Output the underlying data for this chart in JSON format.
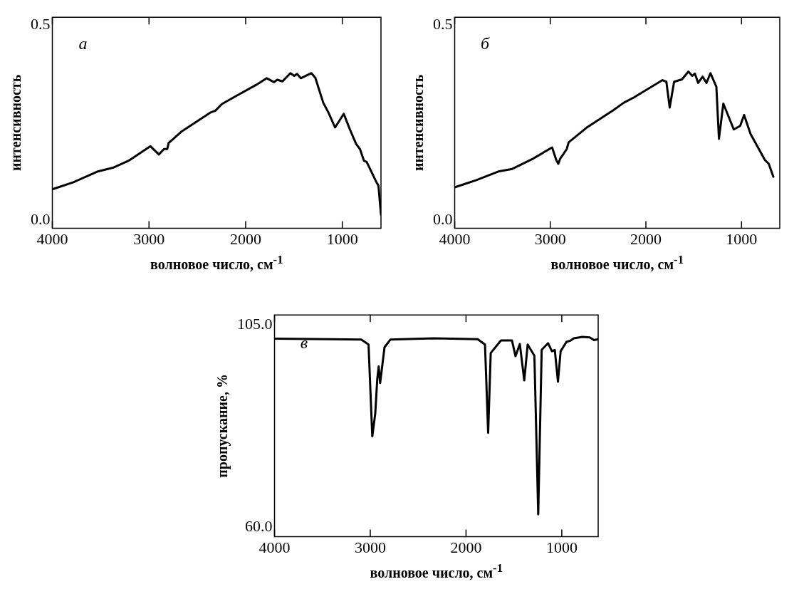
{
  "chart_data": [
    {
      "type": "line",
      "xlabel": "волновое число, см$^{-1}$",
      "ylabel": "интенсивность",
      "annotations": [
        "а"
      ],
      "xlim": [
        4000,
        600
      ],
      "ylim": [
        -0.02,
        0.52
      ],
      "xticks": [
        4000,
        3000,
        2000,
        1000
      ],
      "yticks": [
        {
          "value": 0,
          "label": "0.0"
        },
        {
          "value": 0.5,
          "label": "0.5"
        }
      ],
      "series": [
        {
          "color": "#000000",
          "x": [
            4000,
            3782,
            3537,
            3374,
            3211,
            2985,
            2898,
            2844,
            2811,
            2797,
            2667,
            2367,
            2313,
            2245,
            2095,
            1891,
            1782,
            1706,
            1673,
            1619,
            1537,
            1497,
            1469,
            1429,
            1320,
            1279,
            1197,
            1143,
            1075,
            985,
            925,
            857,
            816,
            776,
            748,
            653,
            626,
            600
          ],
          "values": [
            0.08,
            0.098,
            0.125,
            0.135,
            0.153,
            0.19,
            0.169,
            0.183,
            0.183,
            0.198,
            0.227,
            0.276,
            0.281,
            0.298,
            0.319,
            0.347,
            0.364,
            0.354,
            0.36,
            0.356,
            0.377,
            0.37,
            0.375,
            0.364,
            0.377,
            0.365,
            0.301,
            0.276,
            0.238,
            0.273,
            0.235,
            0.196,
            0.182,
            0.153,
            0.15,
            0.101,
            0.089,
            0.015
          ]
        }
      ]
    },
    {
      "type": "line",
      "xlabel": "волновое число, см$^{-1}$",
      "ylabel": "интенсивность",
      "annotations": [
        "б"
      ],
      "xlim": [
        4000,
        600
      ],
      "ylim": [
        -0.02,
        0.52
      ],
      "xticks": [
        4000,
        3000,
        2000,
        1000
      ],
      "yticks": [
        {
          "value": 0,
          "label": "0.0"
        },
        {
          "value": 0.5,
          "label": "0.5"
        }
      ],
      "series": [
        {
          "color": "#000000",
          "x": [
            4000,
            3778,
            3534,
            3398,
            3182,
            2981,
            2938,
            2916,
            2897,
            2829,
            2808,
            2612,
            2341,
            2233,
            2125,
            1827,
            1786,
            1751,
            1705,
            1623,
            1556,
            1515,
            1488,
            1453,
            1407,
            1366,
            1325,
            1263,
            1236,
            1190,
            1081,
            1014,
            973,
            905,
            837,
            756,
            715,
            667
          ],
          "values": [
            0.085,
            0.103,
            0.126,
            0.132,
            0.158,
            0.187,
            0.155,
            0.145,
            0.158,
            0.182,
            0.2,
            0.239,
            0.282,
            0.301,
            0.315,
            0.359,
            0.355,
            0.289,
            0.355,
            0.361,
            0.381,
            0.37,
            0.376,
            0.352,
            0.368,
            0.352,
            0.377,
            0.342,
            0.209,
            0.299,
            0.233,
            0.242,
            0.27,
            0.221,
            0.191,
            0.155,
            0.145,
            0.112
          ]
        }
      ]
    },
    {
      "type": "line",
      "xlabel": "волновое число, см$^{-1}$",
      "ylabel": "пропускание, %",
      "annotations": [
        "в"
      ],
      "xlim": [
        4000,
        620
      ],
      "ylim": [
        57.8,
        107.3
      ],
      "xticks": [
        4000,
        3000,
        2000,
        1000
      ],
      "yticks": [
        {
          "value": 60,
          "label": "60.0"
        },
        {
          "value": 105,
          "label": "105.0"
        }
      ],
      "series": [
        {
          "color": "#000000",
          "x": [
            4000,
            3429,
            3094,
            3018,
            2997,
            2979,
            2948,
            2927,
            2912,
            2897,
            2851,
            2790,
            2334,
            1878,
            1802,
            1769,
            1742,
            1635,
            1520,
            1483,
            1438,
            1392,
            1356,
            1286,
            1246,
            1210,
            1143,
            1103,
            1073,
            1040,
            1012,
            951,
            906,
            875,
            784,
            708,
            663,
            620
          ],
          "values": [
            102.0,
            101.9,
            101.8,
            100.7,
            89.6,
            80.2,
            85.3,
            93.0,
            95.8,
            92.1,
            100.1,
            101.8,
            102.1,
            101.9,
            100.7,
            81.0,
            98.8,
            101.6,
            101.6,
            98.1,
            100.8,
            92.7,
            100.7,
            98.2,
            62.8,
            99.5,
            101.0,
            99.2,
            99.5,
            92.4,
            99.2,
            101.3,
            101.6,
            102.1,
            102.4,
            102.3,
            101.7,
            101.9
          ]
        }
      ]
    }
  ]
}
